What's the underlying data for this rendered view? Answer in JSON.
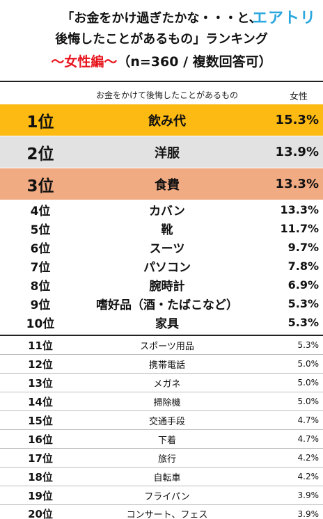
{
  "header": {
    "title_line1": "「お金をかけ過ぎたかな・・・と、",
    "title_line2": "後悔したことがあるもの」ランキング",
    "subtitle_red": "〜女性編〜",
    "subtitle_rest": "（n=360 / 複数回答可）",
    "logo": "エアトリ"
  },
  "table": {
    "item_header": "お金をかけて後悔したことがあるもの",
    "value_header": "女性"
  },
  "chart_data": {
    "type": "table",
    "title": "「お金をかけ過ぎたかな・・・と、後悔したことがあるもの」ランキング 〜女性編〜（n=360 / 複数回答可）",
    "columns": [
      "お金をかけて後悔したことがあるもの",
      "女性"
    ],
    "rows": [
      {
        "rank": "1位",
        "item": "飲み代",
        "value": "15.3%"
      },
      {
        "rank": "2位",
        "item": "洋服",
        "value": "13.9%"
      },
      {
        "rank": "3位",
        "item": "食費",
        "value": "13.3%"
      },
      {
        "rank": "4位",
        "item": "カバン",
        "value": "13.3%"
      },
      {
        "rank": "5位",
        "item": "靴",
        "value": "11.7%"
      },
      {
        "rank": "6位",
        "item": "スーツ",
        "value": "9.7%"
      },
      {
        "rank": "7位",
        "item": "パソコン",
        "value": "7.8%"
      },
      {
        "rank": "8位",
        "item": "腕時計",
        "value": "6.9%"
      },
      {
        "rank": "9位",
        "item": "嗜好品（酒・たばこなど）",
        "value": "5.3%"
      },
      {
        "rank": "10位",
        "item": "家具",
        "value": "5.3%"
      },
      {
        "rank": "11位",
        "item": "スポーツ用品",
        "value": "5.3%"
      },
      {
        "rank": "12位",
        "item": "携帯電話",
        "value": "5.0%"
      },
      {
        "rank": "13位",
        "item": "メガネ",
        "value": "5.0%"
      },
      {
        "rank": "14位",
        "item": "掃除機",
        "value": "5.0%"
      },
      {
        "rank": "15位",
        "item": "交通手段",
        "value": "4.7%"
      },
      {
        "rank": "16位",
        "item": "下着",
        "value": "4.7%"
      },
      {
        "rank": "17位",
        "item": "旅行",
        "value": "4.2%"
      },
      {
        "rank": "18位",
        "item": "自転車",
        "value": "4.2%"
      },
      {
        "rank": "19位",
        "item": "フライパン",
        "value": "3.9%"
      },
      {
        "rank": "20位",
        "item": "コンサート、フェス",
        "value": "3.9%"
      }
    ],
    "highlight_colors": [
      "#fdba12",
      "#e2e2e2",
      "#f1ab83"
    ]
  }
}
